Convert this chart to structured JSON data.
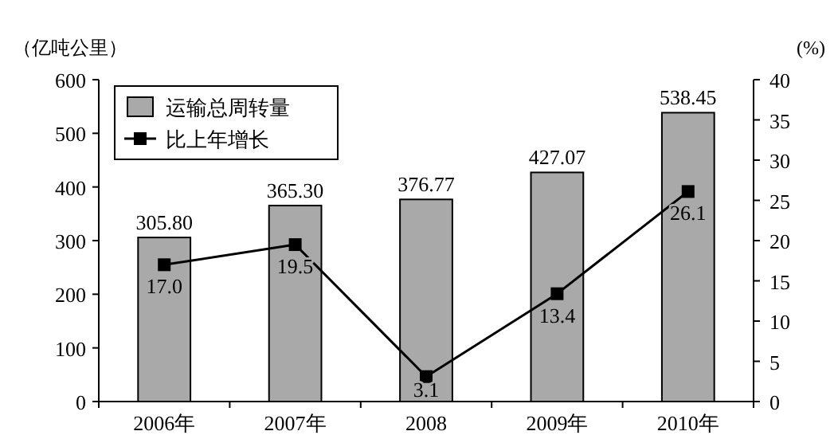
{
  "chart_data": {
    "type": "bar",
    "ylabel": "（亿吨公里）",
    "y2label": "(%)",
    "categories": [
      "2006年",
      "2007年",
      "2008",
      "2009年",
      "2010年"
    ],
    "series": [
      {
        "name": "运输总周转量",
        "color": "#a9a9a9",
        "values": [
          305.8,
          365.3,
          376.77,
          427.07,
          538.45
        ],
        "value_labels": [
          "305.80",
          "365.30",
          "376.77",
          "427.07",
          "538.45"
        ]
      },
      {
        "name": "比上年增长",
        "type": "line",
        "axis": "y2",
        "color": "#000000",
        "marker": "square",
        "values": [
          17.0,
          19.5,
          3.1,
          13.4,
          26.1
        ],
        "value_labels": [
          "17.0",
          "19.5",
          "3.1",
          "13.4",
          "26.1"
        ]
      }
    ],
    "ylim": [
      0,
      600
    ],
    "yticks": [
      0,
      100,
      200,
      300,
      400,
      500,
      600
    ],
    "y2lim": [
      0,
      40
    ],
    "y2ticks": [
      0,
      5,
      10,
      15,
      20,
      25,
      30,
      35,
      40
    ],
    "legend": "top left",
    "grid": false
  }
}
